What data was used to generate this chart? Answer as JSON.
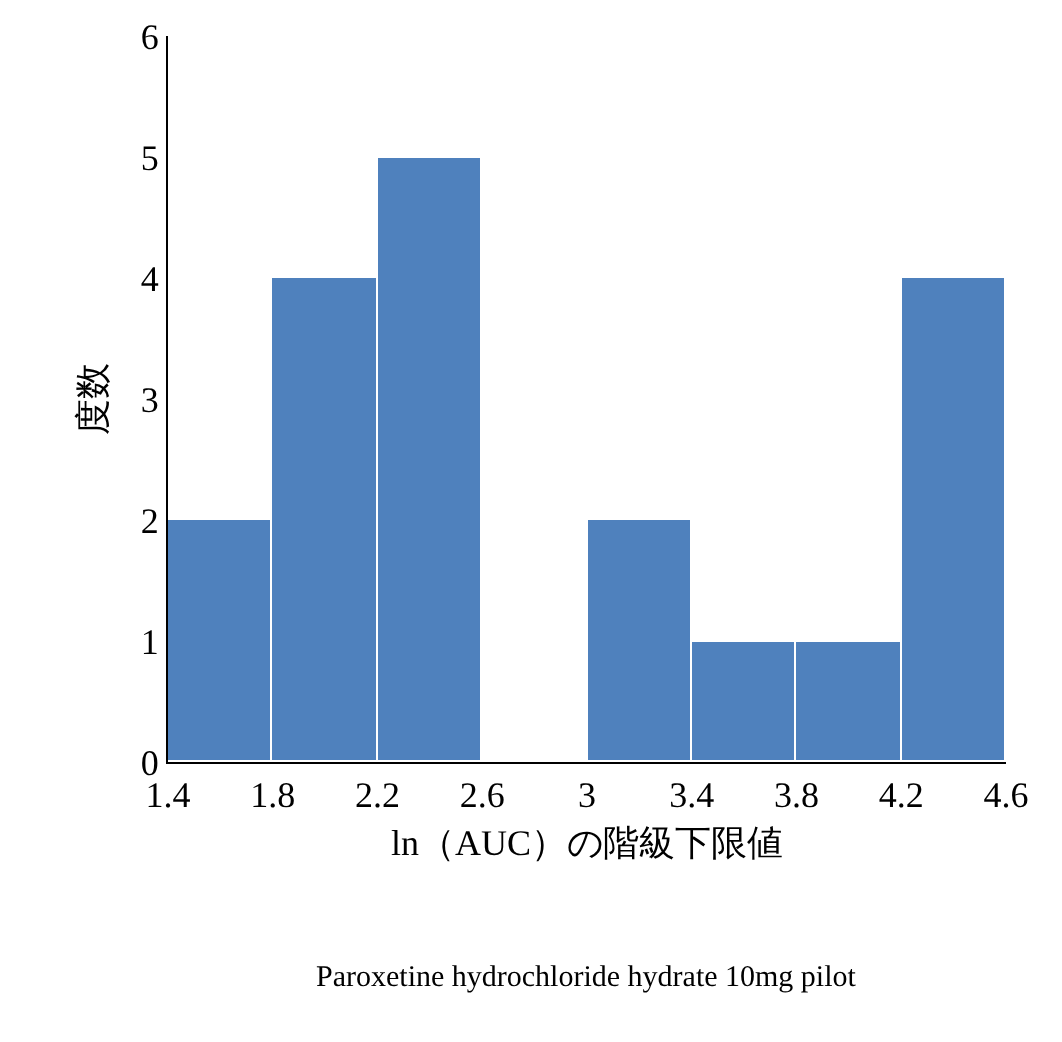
{
  "chart_data": {
    "type": "histogram",
    "xlabel": "ln（AUC）の階級下限値",
    "ylabel": "度数",
    "bins": [
      1.4,
      1.8,
      2.2,
      2.6,
      3,
      3.4,
      3.8,
      4.2,
      4.6
    ],
    "values": [
      2,
      4,
      5,
      0,
      2,
      1,
      1,
      4
    ],
    "color": "#4f81bd",
    "xlim": [
      1.4,
      4.6
    ],
    "xticks": [
      1.4,
      1.8,
      2.2,
      2.6,
      3,
      3.4,
      3.8,
      4.2,
      4.6
    ],
    "ylim": [
      0,
      6
    ],
    "yticks": [
      0,
      1,
      2,
      3,
      4,
      5,
      6
    ],
    "grid": false,
    "annotations": [
      "Paroxetine hydrochloride hydrate 10mg pilot"
    ]
  }
}
